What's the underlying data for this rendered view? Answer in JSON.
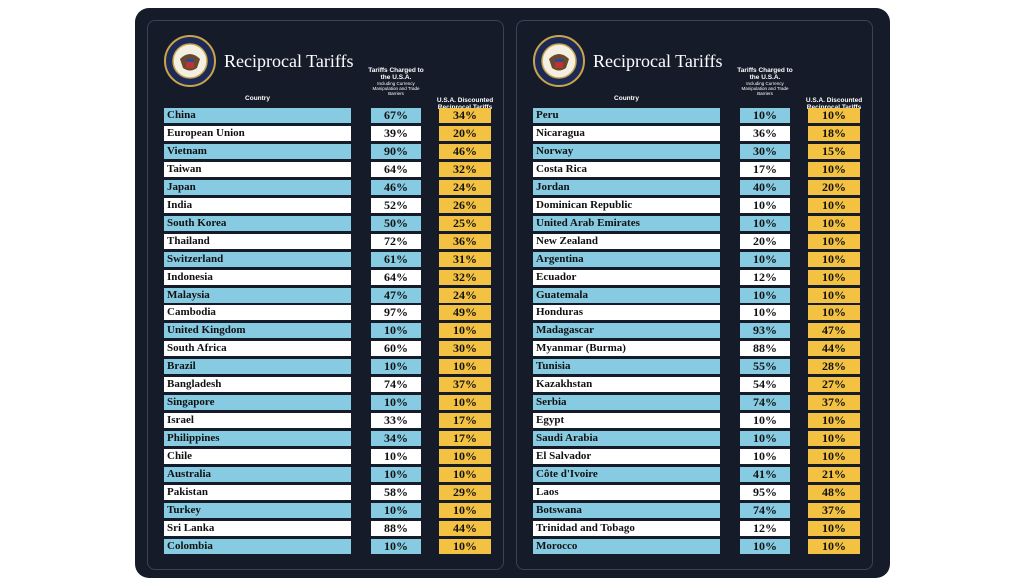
{
  "panels": [
    {
      "title": "Reciprocal Tariffs",
      "headers": {
        "country": "Country",
        "charged": "Tariffs Charged to the U.S.A.",
        "charged_note": "Including Currency Manipulation and Trade Barriers",
        "discounted": "U.S.A. Discounted Reciprocal Tariffs"
      },
      "rows": [
        [
          "China",
          "67%",
          "34%"
        ],
        [
          "European Union",
          "39%",
          "20%"
        ],
        [
          "Vietnam",
          "90%",
          "46%"
        ],
        [
          "Taiwan",
          "64%",
          "32%"
        ],
        [
          "Japan",
          "46%",
          "24%"
        ],
        [
          "India",
          "52%",
          "26%"
        ],
        [
          "South Korea",
          "50%",
          "25%"
        ],
        [
          "Thailand",
          "72%",
          "36%"
        ],
        [
          "Switzerland",
          "61%",
          "31%"
        ],
        [
          "Indonesia",
          "64%",
          "32%"
        ],
        [
          "Malaysia",
          "47%",
          "24%"
        ],
        [
          "Cambodia",
          "97%",
          "49%"
        ],
        [
          "United Kingdom",
          "10%",
          "10%"
        ],
        [
          "South Africa",
          "60%",
          "30%"
        ],
        [
          "Brazil",
          "10%",
          "10%"
        ],
        [
          "Bangladesh",
          "74%",
          "37%"
        ],
        [
          "Singapore",
          "10%",
          "10%"
        ],
        [
          "Israel",
          "33%",
          "17%"
        ],
        [
          "Philippines",
          "34%",
          "17%"
        ],
        [
          "Chile",
          "10%",
          "10%"
        ],
        [
          "Australia",
          "10%",
          "10%"
        ],
        [
          "Pakistan",
          "58%",
          "29%"
        ],
        [
          "Turkey",
          "10%",
          "10%"
        ],
        [
          "Sri Lanka",
          "88%",
          "44%"
        ],
        [
          "Colombia",
          "10%",
          "10%"
        ]
      ]
    },
    {
      "title": "Reciprocal Tariffs",
      "headers": {
        "country": "Country",
        "charged": "Tariffs Charged to the U.S.A.",
        "charged_note": "Including Currency Manipulation and Trade Barriers",
        "discounted": "U.S.A. Discounted Reciprocal Tariffs"
      },
      "rows": [
        [
          "Peru",
          "10%",
          "10%"
        ],
        [
          "Nicaragua",
          "36%",
          "18%"
        ],
        [
          "Norway",
          "30%",
          "15%"
        ],
        [
          "Costa Rica",
          "17%",
          "10%"
        ],
        [
          "Jordan",
          "40%",
          "20%"
        ],
        [
          "Dominican Republic",
          "10%",
          "10%"
        ],
        [
          "United Arab Emirates",
          "10%",
          "10%"
        ],
        [
          "New Zealand",
          "20%",
          "10%"
        ],
        [
          "Argentina",
          "10%",
          "10%"
        ],
        [
          "Ecuador",
          "12%",
          "10%"
        ],
        [
          "Guatemala",
          "10%",
          "10%"
        ],
        [
          "Honduras",
          "10%",
          "10%"
        ],
        [
          "Madagascar",
          "93%",
          "47%"
        ],
        [
          "Myanmar (Burma)",
          "88%",
          "44%"
        ],
        [
          "Tunisia",
          "55%",
          "28%"
        ],
        [
          "Kazakhstan",
          "54%",
          "27%"
        ],
        [
          "Serbia",
          "74%",
          "37%"
        ],
        [
          "Egypt",
          "10%",
          "10%"
        ],
        [
          "Saudi Arabia",
          "10%",
          "10%"
        ],
        [
          "El Salvador",
          "10%",
          "10%"
        ],
        [
          "Côte d'Ivoire",
          "41%",
          "21%"
        ],
        [
          "Laos",
          "95%",
          "48%"
        ],
        [
          "Botswana",
          "74%",
          "37%"
        ],
        [
          "Trinidad and Tobago",
          "12%",
          "10%"
        ],
        [
          "Morocco",
          "10%",
          "10%"
        ]
      ]
    }
  ]
}
